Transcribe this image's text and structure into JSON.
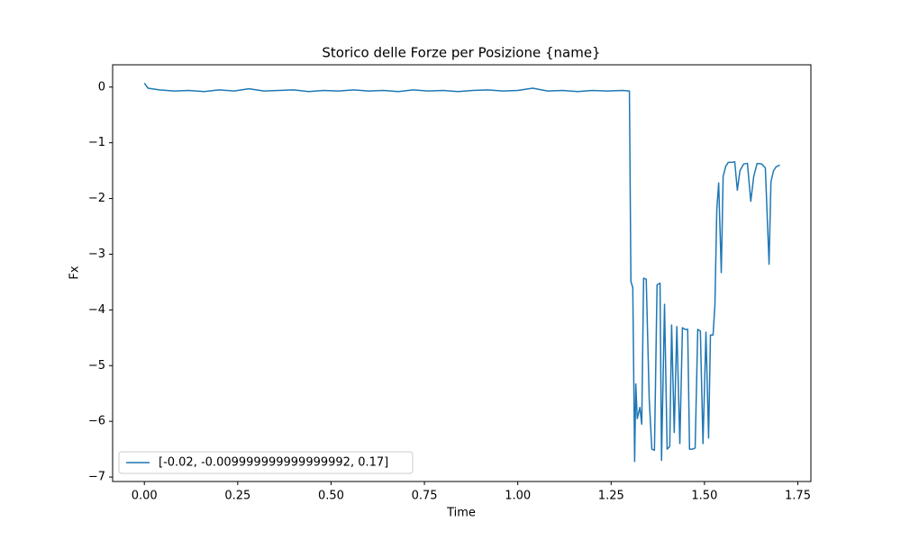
{
  "chart_data": {
    "type": "line",
    "title": "Storico delle Forze per Posizione {name}",
    "xlabel": "Time",
    "ylabel": "Fx",
    "x": [
      0,
      0.01,
      0.02,
      0.04,
      0.08,
      0.12,
      0.16,
      0.2,
      0.24,
      0.28,
      0.32,
      0.36,
      0.4,
      0.44,
      0.48,
      0.52,
      0.56,
      0.6,
      0.64,
      0.68,
      0.72,
      0.76,
      0.8,
      0.84,
      0.88,
      0.92,
      0.96,
      1.0,
      1.04,
      1.08,
      1.12,
      1.16,
      1.2,
      1.24,
      1.28,
      1.299,
      1.303,
      1.308,
      1.313,
      1.316,
      1.32,
      1.327,
      1.332,
      1.337,
      1.344,
      1.352,
      1.359,
      1.366,
      1.373,
      1.381,
      1.385,
      1.393,
      1.4,
      1.407,
      1.412,
      1.419,
      1.426,
      1.434,
      1.441,
      1.448,
      1.455,
      1.46,
      1.468,
      1.475,
      1.482,
      1.489,
      1.496,
      1.504,
      1.511,
      1.516,
      1.523,
      1.528,
      1.533,
      1.538,
      1.545,
      1.55,
      1.557,
      1.564,
      1.574,
      1.581,
      1.588,
      1.595,
      1.605,
      1.615,
      1.624,
      1.632,
      1.641,
      1.653,
      1.663,
      1.673,
      1.678,
      1.685,
      1.692,
      1.702
    ],
    "series": [
      {
        "name": "[-0.02, -0.009999999999999992, 0.17]",
        "color": "#1f77b4",
        "values": [
          0.07,
          -0.02,
          -0.03,
          -0.05,
          -0.07,
          -0.06,
          -0.08,
          -0.05,
          -0.07,
          -0.03,
          -0.07,
          -0.06,
          -0.05,
          -0.08,
          -0.06,
          -0.07,
          -0.05,
          -0.07,
          -0.06,
          -0.08,
          -0.05,
          -0.07,
          -0.06,
          -0.08,
          -0.06,
          -0.05,
          -0.07,
          -0.06,
          -0.02,
          -0.07,
          -0.06,
          -0.08,
          -0.06,
          -0.07,
          -0.06,
          -0.07,
          -3.49,
          -3.6,
          -6.72,
          -5.33,
          -5.95,
          -5.75,
          -6.05,
          -3.43,
          -3.45,
          -5.6,
          -6.5,
          -6.52,
          -3.55,
          -3.52,
          -6.7,
          -3.9,
          -6.5,
          -6.45,
          -4.27,
          -6.2,
          -4.3,
          -6.4,
          -4.32,
          -4.35,
          -4.35,
          -6.5,
          -6.5,
          -6.48,
          -4.35,
          -4.38,
          -6.4,
          -4.4,
          -6.3,
          -4.45,
          -4.45,
          -3.9,
          -2.2,
          -1.72,
          -3.33,
          -1.6,
          -1.42,
          -1.35,
          -1.35,
          -1.34,
          -1.85,
          -1.5,
          -1.38,
          -1.37,
          -2.05,
          -1.6,
          -1.37,
          -1.38,
          -1.45,
          -3.18,
          -1.7,
          -1.5,
          -1.43,
          -1.4
        ]
      }
    ],
    "xlim": [
      -0.085,
      1.785
    ],
    "ylim": [
      -7.08,
      0.4
    ],
    "xticks": [
      {
        "value": 0,
        "label": "0.00"
      },
      {
        "value": 0.25,
        "label": "0.25"
      },
      {
        "value": 0.5,
        "label": "0.50"
      },
      {
        "value": 0.75,
        "label": "0.75"
      },
      {
        "value": 1,
        "label": "1.00"
      },
      {
        "value": 1.25,
        "label": "1.25"
      },
      {
        "value": 1.5,
        "label": "1.50"
      },
      {
        "value": 1.75,
        "label": "1.75"
      }
    ],
    "yticks": [
      0,
      {
        "value": -1,
        "label": "−1"
      },
      {
        "value": -2,
        "label": "−2"
      },
      {
        "value": -3,
        "label": "−3"
      },
      {
        "value": -4,
        "label": "−4"
      },
      {
        "value": -5,
        "label": "−5"
      },
      {
        "value": -6,
        "label": "−6"
      },
      {
        "value": -7,
        "label": "−7"
      }
    ],
    "grid": false,
    "legend": "lower left"
  }
}
